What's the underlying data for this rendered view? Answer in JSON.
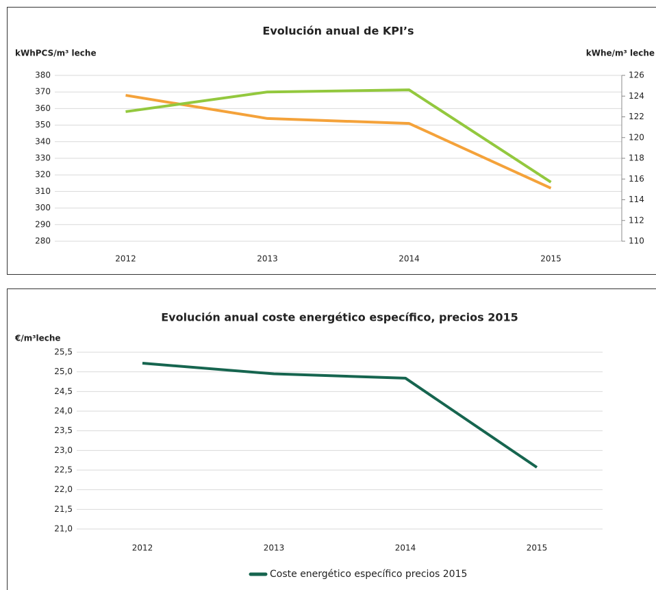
{
  "chart_data": [
    {
      "type": "line",
      "title": "Evolución anual de KPI’s",
      "y_label": "kWhPCS/m³ leche",
      "y2_label": "kWhe/m³ leche",
      "categories": [
        "2012",
        "2013",
        "2014",
        "2015"
      ],
      "series": [
        {
          "name": "kWhPCS/m³ leche",
          "color": "#f4a23a",
          "values": [
            368,
            354,
            351,
            312
          ]
        },
        {
          "name": "kWhe/m³ leche",
          "color": "#93c83e",
          "axis": "y2",
          "values": [
            122.5,
            124.4,
            124.6,
            115.7
          ]
        }
      ],
      "ylim": [
        280,
        380
      ],
      "yticks": [
        280,
        290,
        300,
        310,
        320,
        330,
        340,
        350,
        360,
        370,
        380
      ],
      "y2lim": [
        110,
        126
      ],
      "y2ticks": [
        110,
        112,
        114,
        116,
        118,
        120,
        122,
        124,
        126
      ],
      "grid": true,
      "legend": false
    },
    {
      "type": "line",
      "title": "Evolución anual coste energético específico, precios 2015",
      "y_label": "€/m³leche",
      "categories": [
        "2012",
        "2013",
        "2014",
        "2015"
      ],
      "series": [
        {
          "name": "Coste energético específico precios 2015",
          "color": "#16654f",
          "values": [
            25.22,
            24.95,
            24.84,
            22.57
          ]
        }
      ],
      "ylim": [
        21.0,
        25.5
      ],
      "yticks": [
        {
          "value": 21.0,
          "label": "21,0"
        },
        {
          "value": 21.5,
          "label": "21,5"
        },
        {
          "value": 22.0,
          "label": "22,0"
        },
        {
          "value": 22.5,
          "label": "22,5"
        },
        {
          "value": 23.0,
          "label": "23,0"
        },
        {
          "value": 23.5,
          "label": "23,5"
        },
        {
          "value": 24.0,
          "label": "24,0"
        },
        {
          "value": 24.5,
          "label": "24,5"
        },
        {
          "value": 25.0,
          "label": "25,0"
        },
        {
          "value": 25.5,
          "label": "25,5"
        }
      ],
      "grid": true,
      "legend": "bottom"
    }
  ]
}
